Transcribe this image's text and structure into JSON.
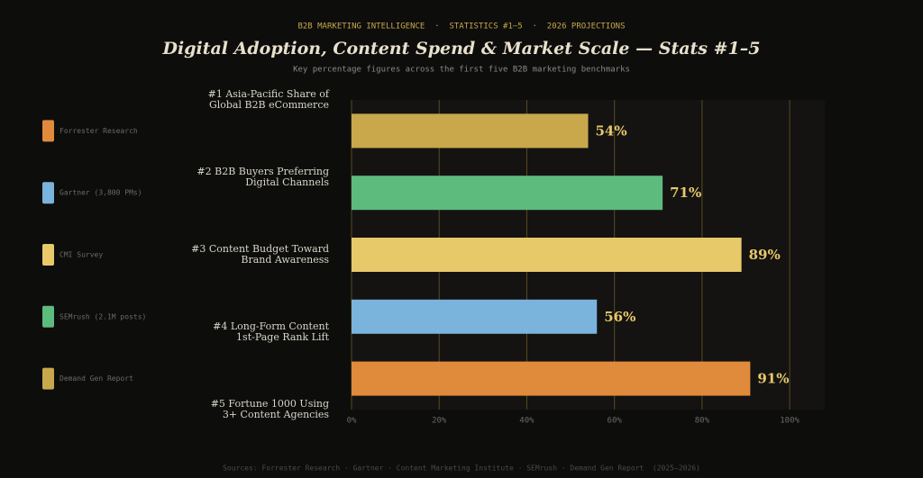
{
  "chart_data": {
    "type": "hbar",
    "supertitle": "B2B MARKETING INTELLIGENCE  ·  STATISTICS #1–5  ·  2026 PROJECTIONS",
    "title": "Digital Adoption, Content Spend & Market Scale — Stats #1–5",
    "subtitle": "Key percentage figures across the first five B2B marketing benchmarks",
    "footer": "Sources: Forrester Research · Gartner · Content Marketing Institute · SEMrush · Demand Gen Report  (2025–2026)",
    "categories": [
      [
        "#1  Asia-Pacific Share of",
        "Global B2B eCommerce"
      ],
      [
        "#2  B2B Buyers Preferring",
        "Digital Channels"
      ],
      [
        "#3  Content Budget Toward",
        "Brand Awareness"
      ],
      [
        "#4  Long-Form Content",
        "1st-Page Rank Lift"
      ],
      [
        "#5  Fortune 1000 Using",
        "3+ Content Agencies"
      ]
    ],
    "values": [
      54,
      71,
      89,
      56,
      91
    ],
    "value_labels": [
      "54%",
      "71%",
      "89%",
      "56%",
      "91%"
    ],
    "colors": [
      "#c8a84b",
      "#5dbb7e",
      "#e8c96a",
      "#7ab3dc",
      "#e08a3c"
    ],
    "sources": [
      "Demand Gen Report",
      "SEMrush (2.1M posts)",
      "CMI Survey",
      "Gartner (3,800 PMs)",
      "Forrester Research"
    ],
    "xlim": [
      0,
      108
    ],
    "xticks": [
      {
        "value": 0,
        "label": "0%"
      },
      {
        "value": 20,
        "label": "20%"
      },
      {
        "value": 40,
        "label": "40%"
      },
      {
        "value": 60,
        "label": "60%"
      },
      {
        "value": 80,
        "label": "80%"
      },
      {
        "value": 100,
        "label": "100%"
      }
    ],
    "grid": true
  }
}
